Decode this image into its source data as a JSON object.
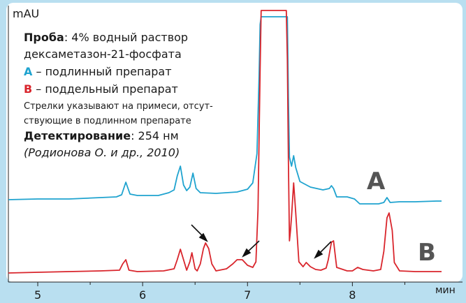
{
  "chart_data": {
    "type": "line",
    "ylabel": "mAU",
    "xlabel": "мин",
    "xlim": [
      4.72,
      9.05
    ],
    "x_ticks": [
      5,
      6,
      7,
      8
    ],
    "series": [
      {
        "name": "A",
        "color": "#1fa3cf",
        "points": [
          [
            4.72,
            286
          ],
          [
            5.0,
            285
          ],
          [
            5.3,
            285
          ],
          [
            5.6,
            283
          ],
          [
            5.75,
            282
          ],
          [
            5.8,
            279
          ],
          [
            5.84,
            261
          ],
          [
            5.88,
            278
          ],
          [
            5.95,
            280
          ],
          [
            6.15,
            280
          ],
          [
            6.25,
            276
          ],
          [
            6.3,
            272
          ],
          [
            6.33,
            252
          ],
          [
            6.36,
            238
          ],
          [
            6.39,
            265
          ],
          [
            6.42,
            273
          ],
          [
            6.45,
            268
          ],
          [
            6.48,
            248
          ],
          [
            6.51,
            270
          ],
          [
            6.55,
            276
          ],
          [
            6.7,
            277
          ],
          [
            6.9,
            275
          ],
          [
            7.0,
            271
          ],
          [
            7.05,
            262
          ],
          [
            7.09,
            220
          ],
          [
            7.11,
            110
          ],
          [
            7.12,
            35
          ],
          [
            7.13,
            24
          ],
          [
            7.38,
            24
          ],
          [
            7.39,
            140
          ],
          [
            7.4,
            225
          ],
          [
            7.42,
            238
          ],
          [
            7.44,
            223
          ],
          [
            7.46,
            240
          ],
          [
            7.5,
            260
          ],
          [
            7.6,
            268
          ],
          [
            7.72,
            272
          ],
          [
            7.78,
            270
          ],
          [
            7.8,
            266
          ],
          [
            7.82,
            270
          ],
          [
            7.85,
            282
          ],
          [
            7.95,
            282
          ],
          [
            8.02,
            285
          ],
          [
            8.07,
            292
          ],
          [
            8.15,
            292
          ],
          [
            8.25,
            292
          ],
          [
            8.3,
            290
          ],
          [
            8.33,
            283
          ],
          [
            8.36,
            290
          ],
          [
            8.45,
            289
          ],
          [
            8.6,
            289
          ],
          [
            8.8,
            288
          ],
          [
            8.85,
            288
          ]
        ]
      },
      {
        "name": "B",
        "color": "#d9252c",
        "points": [
          [
            4.72,
            391
          ],
          [
            5.0,
            390
          ],
          [
            5.3,
            389
          ],
          [
            5.6,
            388
          ],
          [
            5.78,
            387
          ],
          [
            5.81,
            378
          ],
          [
            5.84,
            372
          ],
          [
            5.87,
            387
          ],
          [
            5.95,
            389
          ],
          [
            6.2,
            388
          ],
          [
            6.3,
            385
          ],
          [
            6.33,
            372
          ],
          [
            6.36,
            357
          ],
          [
            6.39,
            372
          ],
          [
            6.42,
            387
          ],
          [
            6.45,
            375
          ],
          [
            6.47,
            362
          ],
          [
            6.5,
            385
          ],
          [
            6.52,
            388
          ],
          [
            6.55,
            378
          ],
          [
            6.58,
            356
          ],
          [
            6.6,
            348
          ],
          [
            6.63,
            356
          ],
          [
            6.66,
            378
          ],
          [
            6.7,
            388
          ],
          [
            6.8,
            385
          ],
          [
            6.86,
            378
          ],
          [
            6.9,
            372
          ],
          [
            6.95,
            372
          ],
          [
            7.0,
            380
          ],
          [
            7.05,
            383
          ],
          [
            7.08,
            375
          ],
          [
            7.1,
            300
          ],
          [
            7.11,
            200
          ],
          [
            7.12,
            100
          ],
          [
            7.13,
            15
          ],
          [
            7.37,
            15
          ],
          [
            7.38,
            85
          ],
          [
            7.39,
            230
          ],
          [
            7.4,
            345
          ],
          [
            7.41,
            330
          ],
          [
            7.42,
            310
          ],
          [
            7.44,
            262
          ],
          [
            7.46,
            305
          ],
          [
            7.49,
            375
          ],
          [
            7.53,
            382
          ],
          [
            7.56,
            376
          ],
          [
            7.6,
            382
          ],
          [
            7.65,
            386
          ],
          [
            7.7,
            387
          ],
          [
            7.75,
            384
          ],
          [
            7.77,
            372
          ],
          [
            7.8,
            347
          ],
          [
            7.82,
            345
          ],
          [
            7.85,
            383
          ],
          [
            7.95,
            388
          ],
          [
            8.0,
            388
          ],
          [
            8.05,
            383
          ],
          [
            8.1,
            386
          ],
          [
            8.2,
            388
          ],
          [
            8.27,
            386
          ],
          [
            8.3,
            360
          ],
          [
            8.33,
            312
          ],
          [
            8.35,
            305
          ],
          [
            8.38,
            330
          ],
          [
            8.4,
            376
          ],
          [
            8.45,
            388
          ],
          [
            8.6,
            389
          ],
          [
            8.8,
            389
          ],
          [
            8.85,
            389
          ]
        ]
      }
    ],
    "series_labels": [
      {
        "text": "A",
        "x": 525,
        "y": 271
      },
      {
        "text": "B",
        "x": 598,
        "y": 373
      }
    ]
  },
  "annotations": {
    "line1_bold": "Проба",
    "line1_rest": ": 4% водный раствор",
    "line2": "дексаметазон-21-фосфата",
    "line3_letter": "А",
    "line3_rest": " – подлинный препарат",
    "line4_letter": "В",
    "line4_rest": " – поддельный препарат",
    "line5": "Стрелки указывают на примеси, отсут-",
    "line6": "ствующие в подлинном препарате",
    "line7_bold": "Детектирование",
    "line7_rest": ": 254 нм",
    "line8": "(Родионова О. и др., 2010)"
  },
  "colors": {
    "background": "#b9dff0",
    "plot_background": "#ffffff",
    "series_a": "#1fa3cf",
    "series_b": "#d9252c",
    "label_text": "#555555"
  }
}
